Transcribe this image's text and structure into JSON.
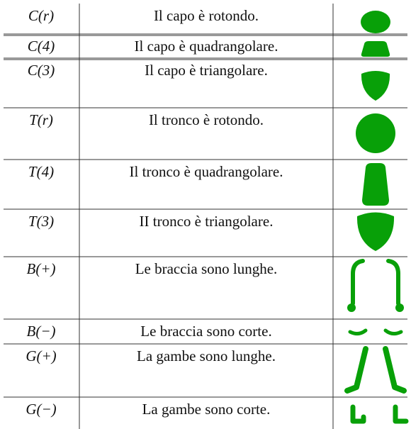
{
  "table": {
    "rows": [
      [
        "C(r)",
        "Il capo è rotondo."
      ],
      [
        "C(4)",
        "Il capo è quadrangolare."
      ],
      [
        "C(3)",
        "Il capo è triangolare."
      ],
      [
        "T(r)",
        "Il tronco è rotondo."
      ],
      [
        "T(4)",
        "Il tronco è quadrangolare."
      ],
      [
        "T(3)",
        "II tronco è triangolare."
      ],
      [
        "B(+)",
        "Le braccia sono lunghe."
      ],
      [
        "B(−)",
        "Le braccia sono corte."
      ],
      [
        "G(+)",
        "La gambe sono lunghe."
      ],
      [
        "G(−)",
        "La gambe sono corte."
      ]
    ]
  }
}
